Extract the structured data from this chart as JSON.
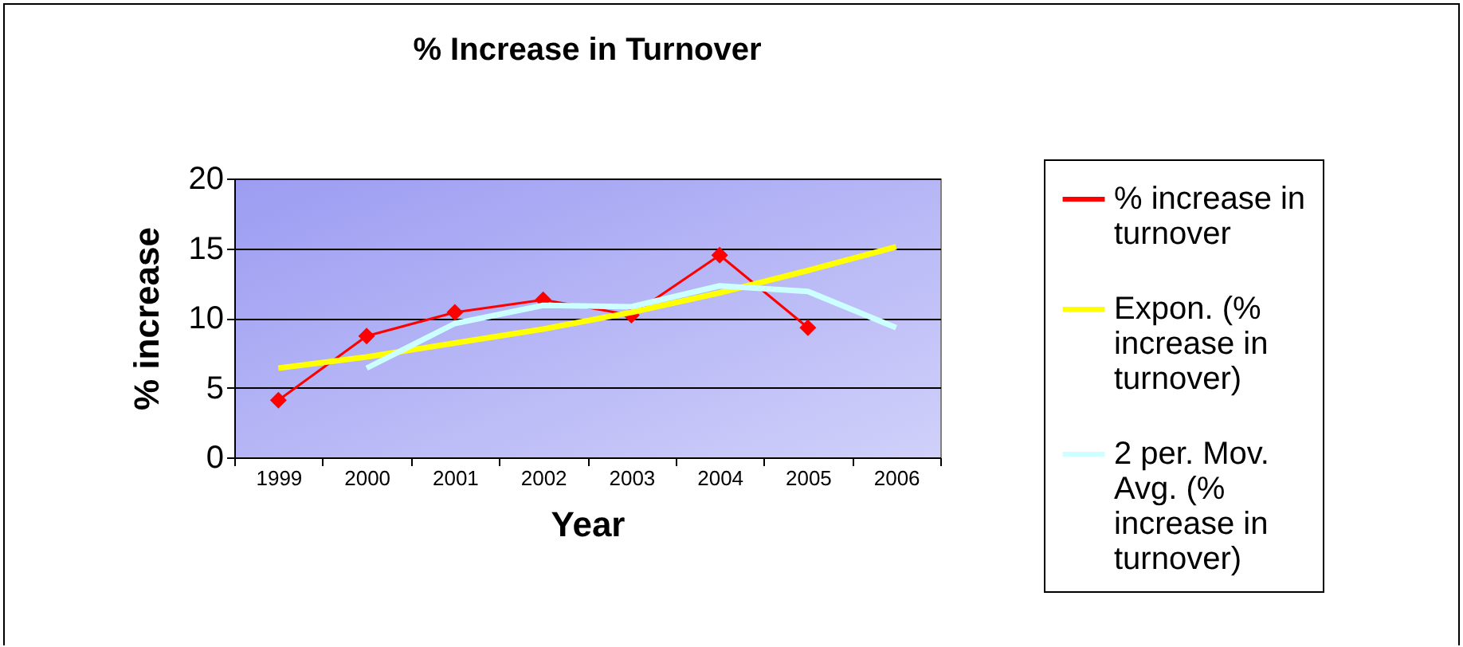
{
  "chart_data": {
    "type": "line",
    "title": "% Increase in Turnover",
    "xlabel": "Year",
    "ylabel": "% increase",
    "categories": [
      "1999",
      "2000",
      "2001",
      "2002",
      "2003",
      "2004",
      "2005",
      "2006"
    ],
    "series": [
      {
        "name": "% increase in turnover",
        "color": "#ff0000",
        "marker": "diamond",
        "values": [
          4.1,
          8.7,
          10.4,
          11.3,
          10.2,
          14.5,
          9.3,
          null
        ]
      },
      {
        "name": "Expon. (% increase in turnover)",
        "color": "#ffff00",
        "marker": "none",
        "values": [
          6.4,
          7.2,
          8.2,
          9.2,
          10.4,
          11.8,
          13.4,
          15.1
        ]
      },
      {
        "name": "2 per. Mov. Avg. (% increase in turnover)",
        "color": "#ccffff",
        "marker": "none",
        "values": [
          null,
          6.4,
          9.6,
          10.9,
          10.8,
          12.3,
          11.9,
          9.3
        ]
      }
    ],
    "ylim": [
      0,
      20
    ],
    "yticks": [
      0,
      5,
      10,
      15,
      20
    ],
    "grid": "y",
    "legend": "right"
  }
}
